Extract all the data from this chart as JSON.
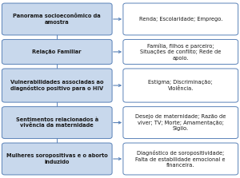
{
  "left_boxes": [
    "Panorama socioeconômico da\namostra",
    "Relação Familiar",
    "Vulnerabilidades associadas ao\ndiagnóstico positivo para o HIV",
    "Sentimentos relacionados à\nvivência da maternidade",
    "Mulheres soropositivas e o aborto\ninduzido"
  ],
  "right_boxes": [
    "Renda; Escolaridade; Emprego.",
    "Família, filhos e parceiro;\nSituações de conflito; Rede de\napoio.",
    "Estigma; Discriminação;\nViolência.",
    "Desejo de maternidade; Razão de\nviver; TV; Morte; Amamentação;\nSigilo.",
    "Diagnóstico de soropositividade;\nFalta de estabilidade emocional e\nfinanceira."
  ],
  "left_box_color": "#c8d8ec",
  "left_box_edge_color": "#5a82b8",
  "right_box_color": "#ffffff",
  "right_box_edge_color": "#5a82b8",
  "arrow_color": "#5a82b8",
  "text_color": "#1a1a1a",
  "font_size": 4.8,
  "background_color": "#ffffff",
  "fig_width": 3.0,
  "fig_height": 2.23,
  "dpi": 100
}
